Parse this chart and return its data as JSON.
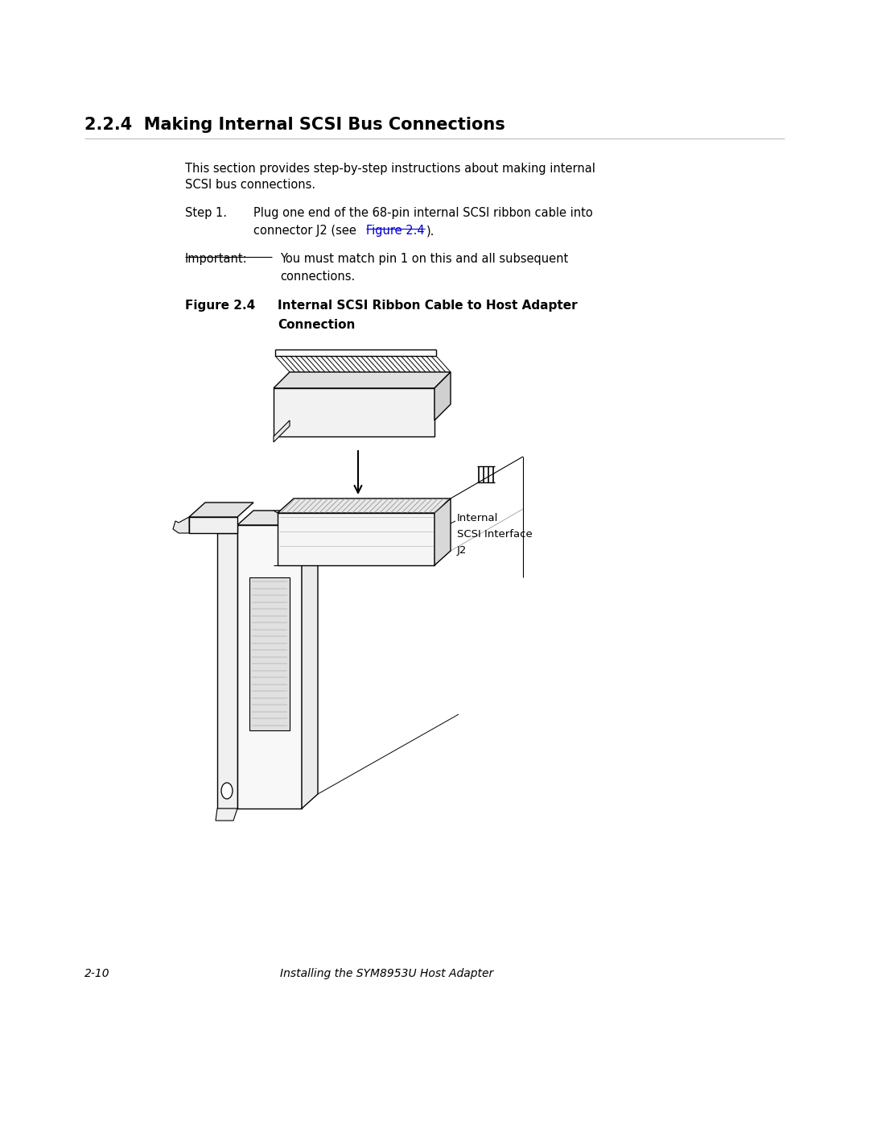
{
  "title": "2.2.4  Making Internal SCSI Bus Connections",
  "section_text_1": "This section provides step-by-step instructions about making internal",
  "section_text_2": "SCSI bus connections.",
  "step1_label": "Step 1.",
  "step1_text_1": "Plug one end of the 68-pin internal SCSI ribbon cable into",
  "step1_text_2": "connector J2 (see ",
  "step1_link": "Figure 2.4",
  "step1_text_3": ").",
  "important_label": "Important:",
  "important_text_1": "You must match pin 1 on this and all subsequent",
  "important_text_2": "connections.",
  "figure_label": "Figure 2.4",
  "figure_title_1": "Internal SCSI Ribbon Cable to Host Adapter",
  "figure_title_2": "Connection",
  "footer_page": "2-10",
  "footer_text": "Installing the SYM8953U Host Adapter",
  "bg_color": "#ffffff",
  "text_color": "#000000",
  "link_color": "#0000cc",
  "line_color": "#000000"
}
